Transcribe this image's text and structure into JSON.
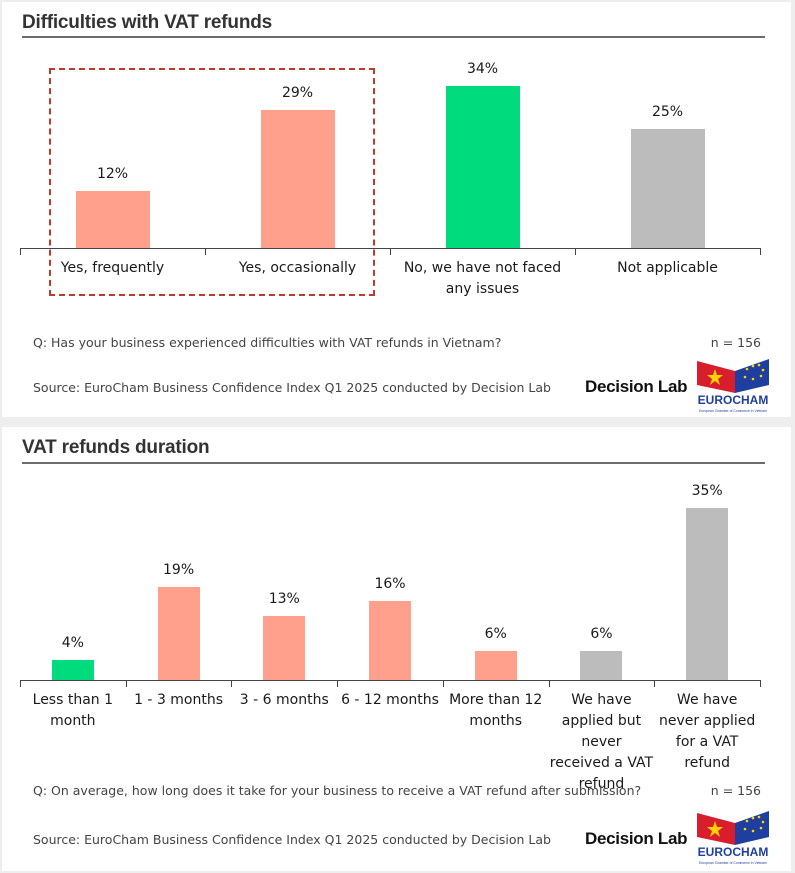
{
  "panel1": {
    "title": "Difficulties with VAT refunds",
    "question": "Q: Has your business experienced difficulties with VAT refunds in Vietnam?",
    "n": "n = 156",
    "source": "Source: EuroCham Business Confidence Index Q1 2025 conducted by Decision Lab",
    "logo_decision_lab": "Decision Lab",
    "logo_eurocham": "EUROCHAM",
    "logo_eurocham_sub": "European Chamber of Commerce in Vietnam"
  },
  "panel2": {
    "title": "VAT refunds duration",
    "question": "Q: On average, how long does it take for your business to receive a VAT refund after submission?",
    "n": "n = 156",
    "source": "Source: EuroCham Business Confidence Index Q1 2025 conducted by Decision Lab",
    "logo_decision_lab": "Decision Lab",
    "logo_eurocham": "EUROCHAM",
    "logo_eurocham_sub": "European Chamber of Commerce in Vietnam"
  },
  "chart_data": [
    {
      "type": "bar",
      "title": "Difficulties with VAT refunds",
      "categories": [
        "Yes, frequently",
        "Yes, occasionally",
        "No, we have not faced any issues",
        "Not applicable"
      ],
      "values": [
        12,
        29,
        34,
        25
      ],
      "labels": [
        "12%",
        "29%",
        "34%",
        "25%"
      ],
      "colors": [
        "#ffa08c",
        "#ffa08c",
        "#00dc7d",
        "#bcbcbc"
      ],
      "ylim": [
        0,
        34
      ],
      "highlight": "Yes, frequently – Yes, occasionally (dashed red box)"
    },
    {
      "type": "bar",
      "title": "VAT refunds duration",
      "categories": [
        "Less than 1 month",
        "1 - 3 months",
        "3 - 6 months",
        "6 - 12 months",
        "More than 12 months",
        "We have applied but never received a VAT refund",
        "We have never applied for a VAT refund"
      ],
      "values": [
        4,
        19,
        13,
        16,
        6,
        6,
        35
      ],
      "labels": [
        "4%",
        "19%",
        "13%",
        "16%",
        "6%",
        "6%",
        "35%"
      ],
      "colors": [
        "#00dc7d",
        "#ffa08c",
        "#ffa08c",
        "#ffa08c",
        "#ffa08c",
        "#bcbcbc",
        "#bcbcbc"
      ],
      "ylim": [
        0,
        35
      ]
    }
  ]
}
